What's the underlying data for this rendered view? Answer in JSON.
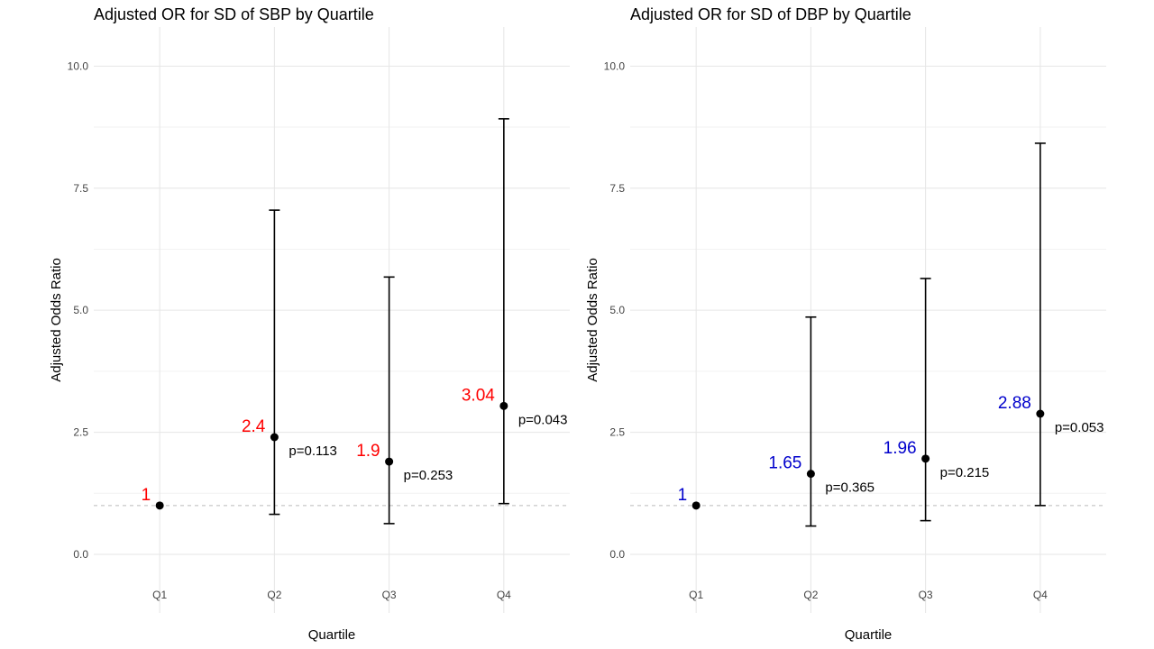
{
  "chart_data": [
    {
      "type": "scatter",
      "title": "Adjusted OR for SD of SBP by Quartile",
      "xlabel": "Quartile",
      "ylabel": "Adjusted Odds Ratio",
      "ylim": [
        -1.2,
        10.8
      ],
      "yticks": [
        0.0,
        2.5,
        5.0,
        7.5,
        10.0
      ],
      "ytick_labels": [
        "0.0",
        "2.5",
        "5.0",
        "7.5",
        "10.0"
      ],
      "reference_line": 1,
      "categories": [
        "Q1",
        "Q2",
        "Q3",
        "Q4"
      ],
      "values": [
        1,
        2.4,
        1.9,
        3.04
      ],
      "ci_lower": [
        1,
        0.82,
        0.63,
        1.04
      ],
      "ci_upper": [
        1,
        7.05,
        5.68,
        8.92
      ],
      "value_labels": [
        "1",
        "2.4",
        "1.9",
        "3.04"
      ],
      "p_labels": [
        "",
        "p=0.113",
        "p=0.253",
        "p=0.043"
      ],
      "label_color": "#ff0000"
    },
    {
      "type": "scatter",
      "title": "Adjusted OR for SD of DBP by Quartile",
      "xlabel": "Quartile",
      "ylabel": "Adjusted Odds Ratio",
      "ylim": [
        -1.2,
        10.8
      ],
      "yticks": [
        0.0,
        2.5,
        5.0,
        7.5,
        10.0
      ],
      "ytick_labels": [
        "0.0",
        "2.5",
        "5.0",
        "7.5",
        "10.0"
      ],
      "reference_line": 1,
      "categories": [
        "Q1",
        "Q2",
        "Q3",
        "Q4"
      ],
      "values": [
        1,
        1.65,
        1.96,
        2.88
      ],
      "ci_lower": [
        1,
        0.58,
        0.69,
        1.0
      ],
      "ci_upper": [
        1,
        4.86,
        5.65,
        8.42
      ],
      "value_labels": [
        "1",
        "1.65",
        "1.96",
        "2.88"
      ],
      "p_labels": [
        "",
        "p=0.365",
        "p=0.215",
        "p=0.053"
      ],
      "label_color": "#0000cc"
    }
  ]
}
